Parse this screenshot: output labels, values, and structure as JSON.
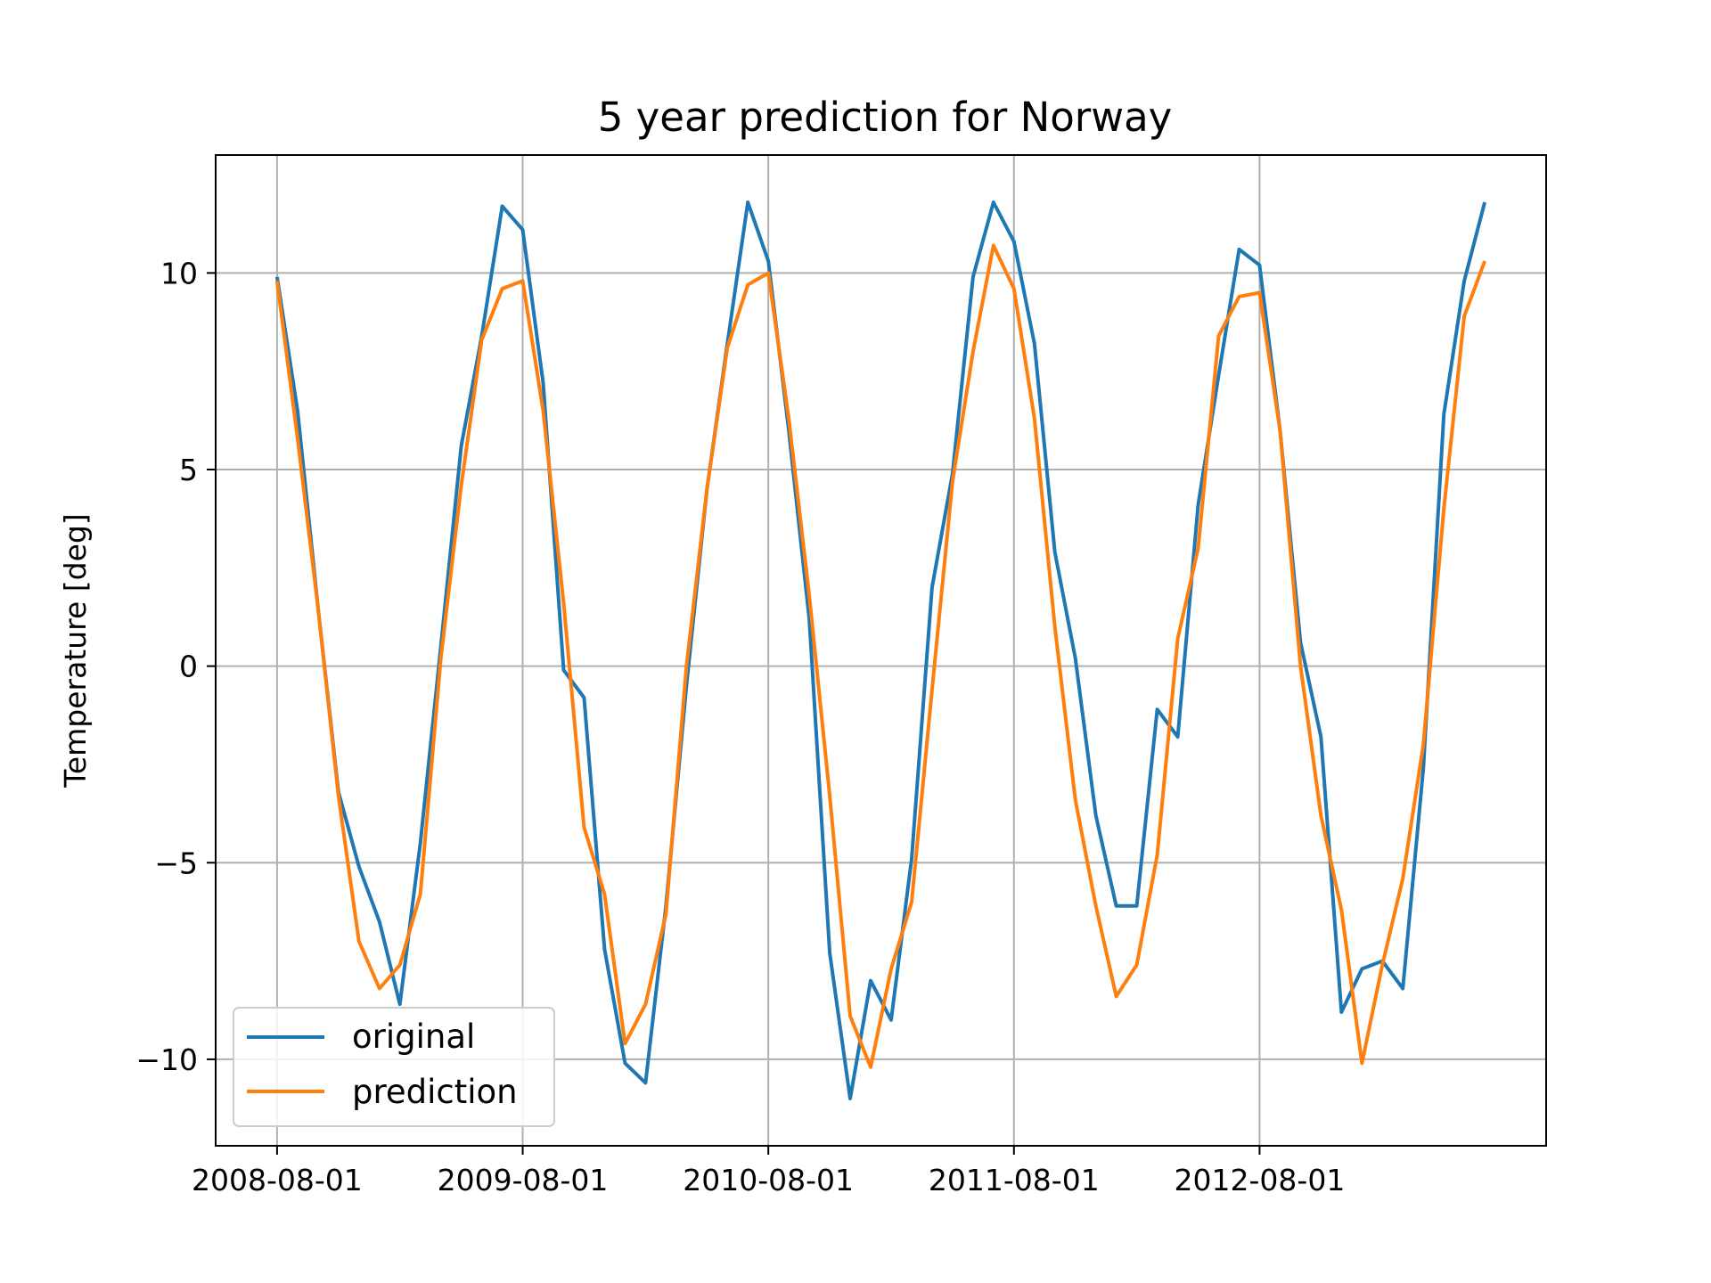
{
  "chart_data": {
    "type": "line",
    "title": "5 year prediction for Norway",
    "xlabel": "",
    "ylabel": "Temperature [deg]",
    "x_ticks": [
      {
        "index": 0,
        "label": "2008-08-01"
      },
      {
        "index": 12,
        "label": "2009-08-01"
      },
      {
        "index": 24,
        "label": "2010-08-01"
      },
      {
        "index": 36,
        "label": "2011-08-01"
      },
      {
        "index": 48,
        "label": "2012-08-01"
      }
    ],
    "y_ticks": [
      {
        "value": 10,
        "label": "10"
      },
      {
        "value": 5,
        "label": "5"
      },
      {
        "value": 0,
        "label": "0"
      },
      {
        "value": -5,
        "label": "−5"
      },
      {
        "value": -10,
        "label": "−10"
      }
    ],
    "xlim": [
      -3,
      62
    ],
    "ylim": [
      -12.2,
      13
    ],
    "grid": true,
    "legend_position": "lower-left",
    "x_start": "2008-08-01",
    "x_step": "1 month",
    "series": [
      {
        "name": "original",
        "color": "#1f77b4",
        "values": [
          9.9,
          6.5,
          1.5,
          -3.2,
          -5.1,
          -6.5,
          -8.6,
          -4.5,
          0.5,
          5.6,
          8.4,
          11.7,
          11.1,
          7.2,
          -0.1,
          -0.8,
          -7.2,
          -10.1,
          -10.6,
          -6.1,
          -0.5,
          4.5,
          8.2,
          11.8,
          10.3,
          6.0,
          1.2,
          -7.3,
          -11.0,
          -8.0,
          -9.0,
          -4.9,
          2.0,
          4.9,
          9.9,
          11.8,
          10.8,
          8.2,
          2.9,
          0.2,
          -3.8,
          -6.1,
          -6.1,
          -1.1,
          -1.8,
          4.1,
          7.4,
          10.6,
          10.2,
          6.0,
          0.6,
          -1.8,
          -8.8,
          -7.7,
          -7.5,
          -8.2,
          -2.6,
          6.4,
          9.8,
          11.8
        ]
      },
      {
        "name": "prediction",
        "color": "#ff7f0e",
        "values": [
          9.8,
          5.8,
          1.5,
          -3.3,
          -7.0,
          -8.2,
          -7.6,
          -5.8,
          0.2,
          4.6,
          8.3,
          9.6,
          9.8,
          6.5,
          1.6,
          -4.1,
          -5.8,
          -9.6,
          -8.6,
          -6.3,
          0.0,
          4.5,
          8.1,
          9.7,
          10.0,
          6.3,
          1.8,
          -3.3,
          -8.9,
          -10.2,
          -7.7,
          -6.0,
          -0.6,
          4.7,
          8.0,
          10.7,
          9.6,
          6.3,
          1.0,
          -3.4,
          -6.1,
          -8.4,
          -7.6,
          -4.8,
          0.7,
          3.0,
          8.4,
          9.4,
          9.5,
          6.0,
          0.0,
          -3.8,
          -6.2,
          -10.1,
          -7.6,
          -5.4,
          -2.0,
          4.0,
          8.9,
          10.3
        ]
      }
    ]
  }
}
